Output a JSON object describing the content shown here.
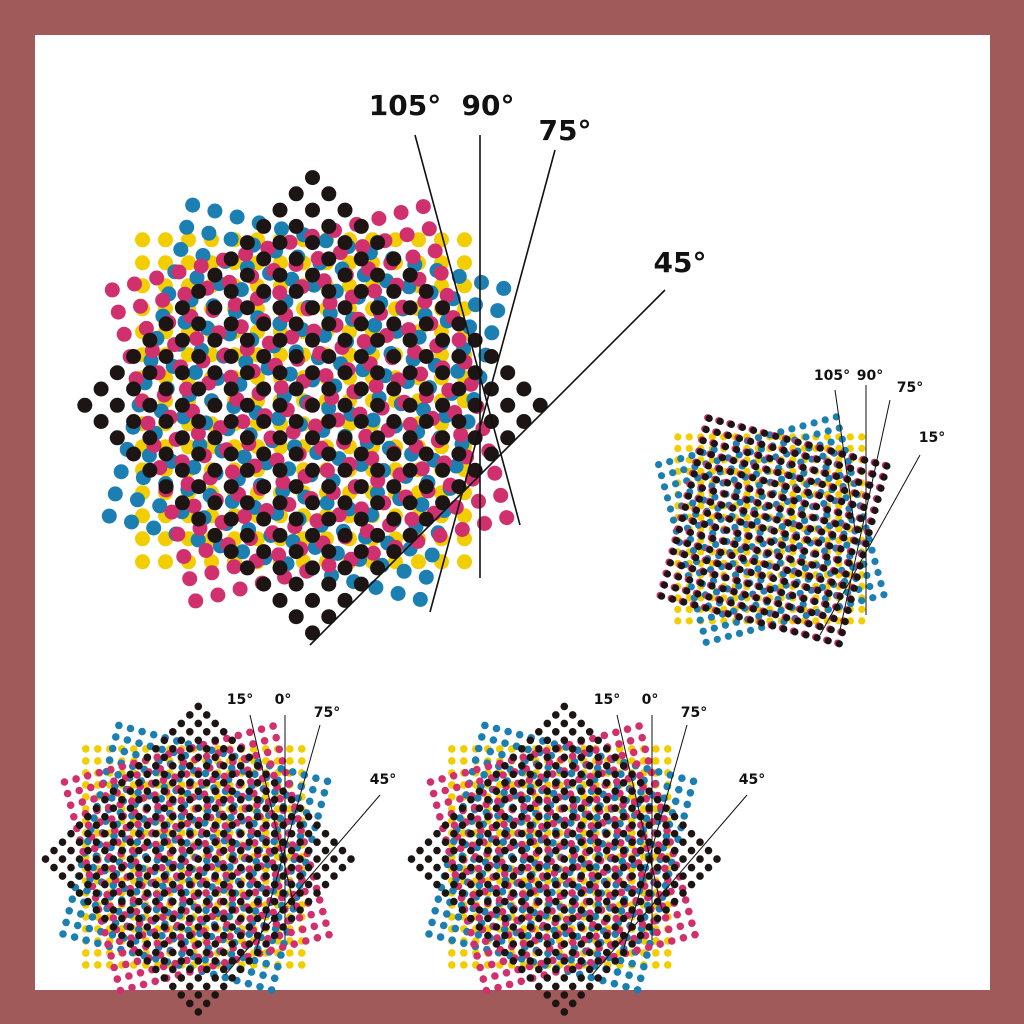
{
  "diagrams": [
    {
      "labels": [
        "105°",
        "90°",
        "75°",
        "45°"
      ]
    },
    {
      "labels": [
        "105°",
        "90°",
        "75°",
        "15°"
      ]
    },
    {
      "labels": [
        "15°",
        "0°",
        "75°",
        "45°"
      ]
    },
    {
      "labels": [
        "15°",
        "0°",
        "75°",
        "45°"
      ]
    }
  ]
}
